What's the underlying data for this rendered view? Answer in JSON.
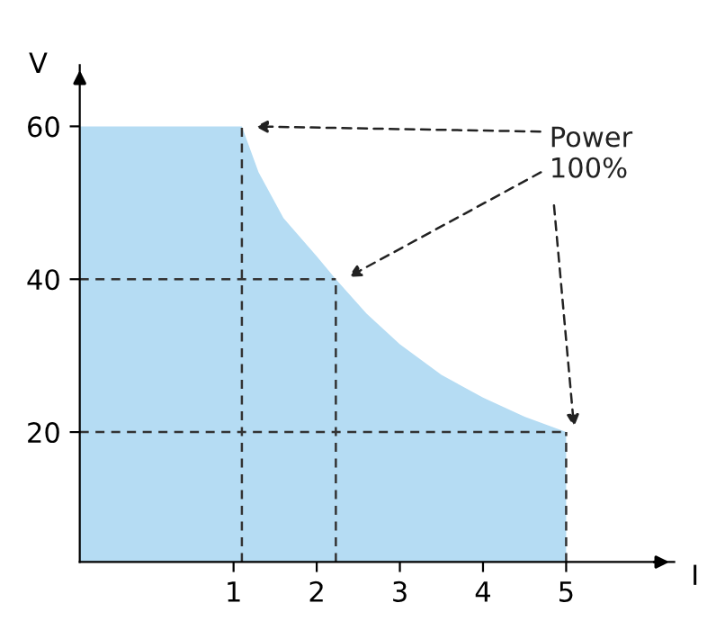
{
  "chart_data": {
    "type": "area",
    "xlabel": "I",
    "ylabel": "V",
    "xlim": [
      -0.85,
      6.3
    ],
    "ylim": [
      3,
      68
    ],
    "xticks": [
      1,
      2,
      3,
      4,
      5
    ],
    "yticks": [
      20,
      40,
      60
    ],
    "grid": false,
    "legend": false,
    "series": [
      {
        "color": "#b5dcf3",
        "x": [
          -0.85,
          1.1,
          1.3,
          1.6,
          2.0,
          2.23,
          2.6,
          3.0,
          3.5,
          4.0,
          4.5,
          5.0
        ],
        "values": [
          60,
          60,
          54,
          48,
          43,
          40,
          35.5,
          31.5,
          27.5,
          24.5,
          22,
          20
        ]
      },
      {
        "type": "line",
        "color": "#333333",
        "line_style": "dashed",
        "x": [
          1.1,
          1.1
        ],
        "values": [
          3,
          60
        ]
      },
      {
        "type": "line",
        "color": "#333333",
        "line_style": "dashed",
        "x": [
          2.23,
          2.23
        ],
        "values": [
          3,
          40
        ]
      },
      {
        "type": "line",
        "color": "#333333",
        "line_style": "dashed",
        "x": [
          -0.85,
          2.23
        ],
        "values": [
          40,
          40
        ]
      },
      {
        "type": "line",
        "color": "#333333",
        "line_style": "dashed",
        "x": [
          -0.85,
          5.0
        ],
        "values": [
          20,
          20
        ]
      },
      {
        "type": "line",
        "color": "#333333",
        "line_style": "dashed",
        "x": [
          5.0,
          5.0
        ],
        "values": [
          3,
          20
        ]
      }
    ],
    "annotations": [
      "Power\n100%"
    ]
  }
}
